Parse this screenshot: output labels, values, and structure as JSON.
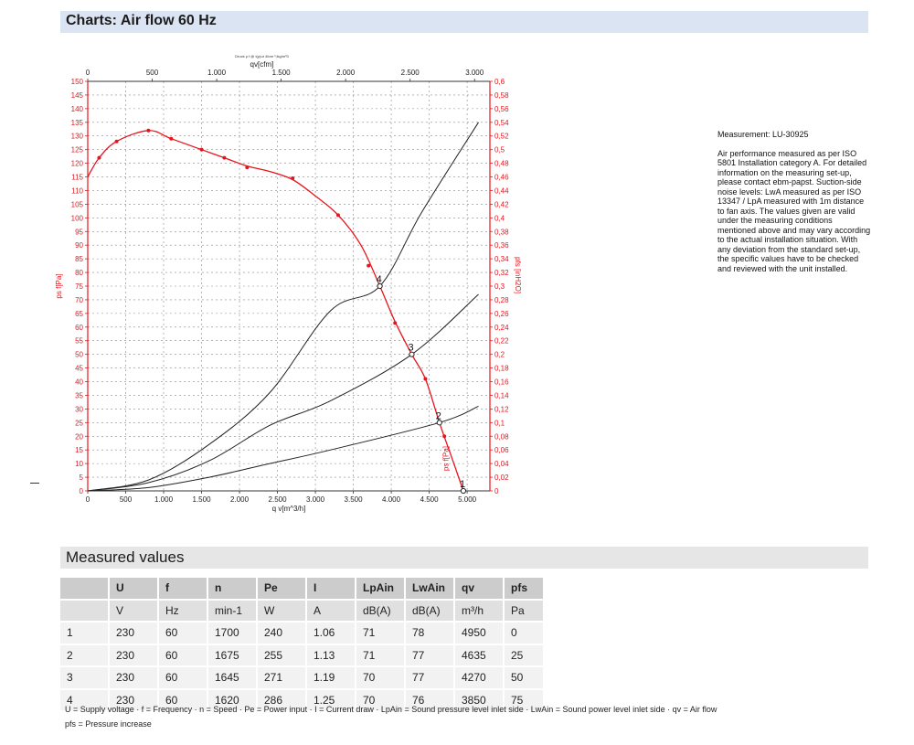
{
  "header": {
    "title": "Charts: Air flow 60 Hz"
  },
  "measured_header": {
    "title": "Measured values"
  },
  "side_note": {
    "measurement": "Measurement: LU-30925",
    "text": "Air performance measured as per ISO 5801 Installation category A. For detailed information on the measuring set-up, please contact ebm-papst. Suction-side noise levels: LwA measured as per ISO 13347 / LpA measured with 1m distance to fan axis. The values given are valid under the measuring conditions mentioned above and may vary according to the actual installation situation. With any deviation from the standard set-up, the specific values have to be checked and reviewed with the unit installed."
  },
  "chart_data": {
    "type": "line",
    "tiny_caption": "Druck p f @ t(ρ)ur 4fom ³,ikg/m³3",
    "x_bottom": {
      "label": "q v[m^3/h]",
      "range": [
        0,
        5300
      ],
      "ticks": [
        0,
        500,
        1000,
        1500,
        2000,
        2500,
        3000,
        3500,
        4000,
        4500,
        5000
      ],
      "tick_labels": [
        "0",
        "500",
        "1.000",
        "1.500",
        "2.000",
        "2.500",
        "3.000",
        "3.500",
        "4.000",
        "4.500",
        "5.000"
      ]
    },
    "x_top": {
      "label": "qv[cfm]",
      "range": [
        0,
        3119
      ],
      "ticks": [
        0,
        500,
        1000,
        1500,
        2000,
        2500,
        3000
      ],
      "tick_labels": [
        "0",
        "500",
        "1.000",
        "1.500",
        "2.000",
        "2.500",
        "3.000"
      ]
    },
    "y_left": {
      "label": "ps f[Pa]",
      "range": [
        0,
        150
      ],
      "ticks": [
        0,
        5,
        10,
        15,
        20,
        25,
        30,
        35,
        40,
        45,
        50,
        55,
        60,
        65,
        70,
        75,
        80,
        85,
        90,
        95,
        100,
        105,
        110,
        115,
        120,
        125,
        130,
        135,
        140,
        145,
        150
      ]
    },
    "y_right": {
      "label": "pfs [inH2O]",
      "range": [
        0,
        0.6
      ],
      "tick_labels": [
        "0",
        "0,02",
        "0,04",
        "0,06",
        "0,08",
        "0,1",
        "0,12",
        "0,14",
        "0,16",
        "0,18",
        "0,2",
        "0,22",
        "0,24",
        "0,26",
        "0,28",
        "0,3",
        "0,32",
        "0,34",
        "0,36",
        "0,38",
        "0,4",
        "0,42",
        "0,44",
        "0,46",
        "0,48",
        "0,5",
        "0,52",
        "0,54",
        "0,56",
        "0,58",
        "0,6"
      ]
    },
    "grid": true,
    "fan_curve": {
      "name": "ps f[Pa]",
      "color": "#e8141b",
      "x": [
        0,
        150,
        380,
        800,
        1100,
        1500,
        1800,
        2100,
        2400,
        2700,
        3000,
        3300,
        3600,
        3850,
        4050,
        4270,
        4450,
        4635,
        4800,
        4950
      ],
      "y": [
        115,
        122,
        128,
        132,
        129,
        125,
        122,
        119,
        117,
        114,
        108,
        101,
        90,
        75,
        62,
        50,
        41,
        25,
        12,
        0
      ],
      "markers_x": [
        150,
        380,
        800,
        1100,
        1500,
        1800,
        2100,
        2700,
        3300,
        3700,
        4050,
        4450,
        4700
      ],
      "markers_y": [
        122,
        128,
        132,
        129,
        125,
        122,
        118.5,
        114.5,
        101,
        82.5,
        61.5,
        41,
        20
      ]
    },
    "system_curves": [
      {
        "name": "4",
        "color": "#222222",
        "x": [
          0,
          800,
          1600,
          2400,
          3200,
          3850,
          4400,
          5150
        ],
        "y": [
          0,
          4,
          17,
          36,
          66,
          75,
          102,
          135
        ]
      },
      {
        "name": "3",
        "color": "#222222",
        "x": [
          0,
          800,
          1600,
          2400,
          3200,
          4270,
          5150
        ],
        "y": [
          0,
          3,
          11,
          24,
          33,
          50,
          72
        ]
      },
      {
        "name": "2",
        "color": "#222222",
        "x": [
          0,
          800,
          1600,
          2400,
          3200,
          4635,
          5150
        ],
        "y": [
          0,
          1.2,
          5,
          10,
          15,
          25,
          31
        ]
      }
    ],
    "operating_points": [
      {
        "label": "4",
        "x": 3850,
        "y": 75
      },
      {
        "label": "3",
        "x": 4270,
        "y": 50
      },
      {
        "label": "2",
        "x": 4635,
        "y": 25
      },
      {
        "label": "1",
        "x": 4950,
        "y": 0
      }
    ],
    "curve_label": "ps f[Pa]"
  },
  "table": {
    "headers": [
      "",
      "U",
      "f",
      "n",
      "Pe",
      "I",
      "LpAin",
      "LwAin",
      "qv",
      "pfs"
    ],
    "units": [
      "",
      "V",
      "Hz",
      "min-1",
      "W",
      "A",
      "dB(A)",
      "dB(A)",
      "m³/h",
      "Pa"
    ],
    "rows": [
      [
        "1",
        "230",
        "60",
        "1700",
        "240",
        "1.06",
        "71",
        "78",
        "4950",
        "0"
      ],
      [
        "2",
        "230",
        "60",
        "1675",
        "255",
        "1.13",
        "71",
        "77",
        "4635",
        "25"
      ],
      [
        "3",
        "230",
        "60",
        "1645",
        "271",
        "1.19",
        "70",
        "77",
        "4270",
        "50"
      ],
      [
        "4",
        "230",
        "60",
        "1620",
        "286",
        "1.25",
        "70",
        "76",
        "3850",
        "75"
      ]
    ]
  },
  "legend": {
    "line1": "U = Supply voltage · f = Frequency · n = Speed · Pe = Power input · I = Current draw · LpAin = Sound pressure level inlet side · LwAin = Sound power level inlet side · qv = Air flow",
    "line2": "pfs = Pressure increase"
  },
  "colors": {
    "accent_red": "#e8141b",
    "header_blue": "#dbe4f2",
    "header_grey": "#e6e6e6"
  }
}
